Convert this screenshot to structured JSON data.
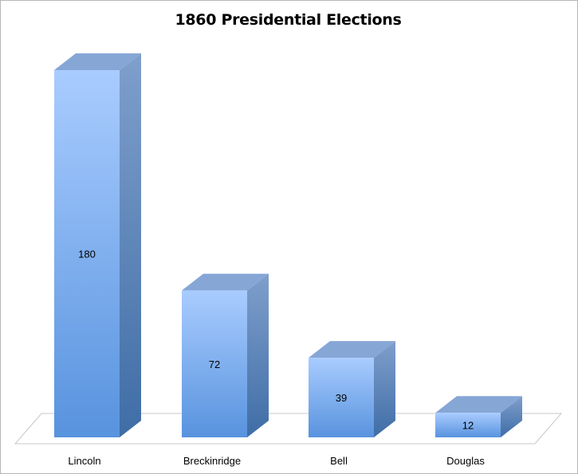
{
  "chart_data": {
    "type": "bar",
    "title": "1860 Presidential Elections",
    "xlabel": "",
    "ylabel": "",
    "categories": [
      "Lincoln",
      "Breckinridge",
      "Bell",
      "Douglas"
    ],
    "values": [
      180,
      72,
      39,
      12
    ],
    "ylim": [
      0,
      180
    ],
    "grid": false,
    "legend": "none",
    "style": "3d-column",
    "colors": {
      "front_top": "#a9ccff",
      "front_bottom": "#5893de",
      "side_top": "#7f9fcc",
      "side_bottom": "#3f6da6",
      "top_face": "#86a6d6",
      "floor_stroke": "#c8c8c8"
    }
  }
}
